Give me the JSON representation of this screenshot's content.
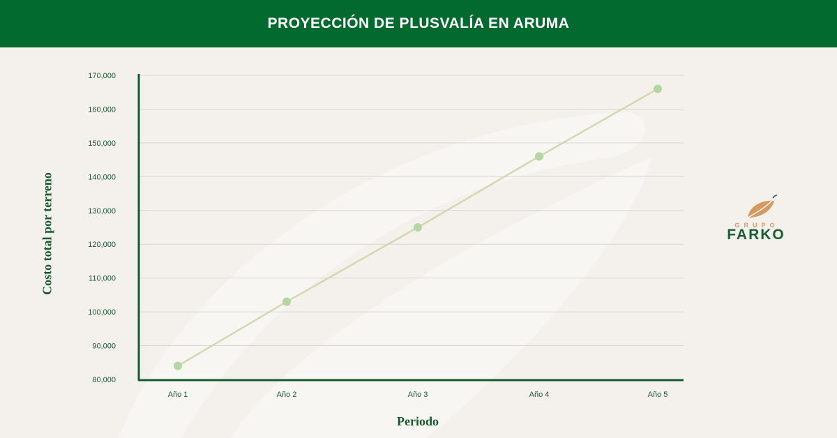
{
  "header": {
    "title": "PROYECCIÓN DE PLUSVALÍA EN ARUMA"
  },
  "brand": {
    "top": "GRUPO",
    "main": "FARKO"
  },
  "colors": {
    "banner": "#026a2e",
    "background": "#f4f0ec",
    "line": "#d3d8b1",
    "marker": "#b5d6a4",
    "axis": "#165a2f",
    "grid": "#dcd6d0",
    "tick_text": "#165a2f",
    "logo_leaf": "#d49a63"
  },
  "chart_data": {
    "type": "line",
    "title": "PROYECCIÓN DE PLUSVALÍA EN ARUMA",
    "xlabel": "Periodo",
    "ylabel": "Costo total por terreno",
    "categories": [
      "Año 1",
      "Año 2",
      "Año 3",
      "Año 4",
      "Año 5"
    ],
    "values": [
      84000,
      103000,
      125000,
      146000,
      166000
    ],
    "ylim": [
      80000,
      170000
    ],
    "yticks": [
      80000,
      90000,
      100000,
      110000,
      120000,
      130000,
      140000,
      150000,
      160000,
      170000
    ],
    "ytick_labels": [
      "80,000",
      "90,000",
      "100,000",
      "110,000",
      "120,000",
      "130,000",
      "140,000",
      "150,000",
      "160,000",
      "170,000"
    ],
    "grid": true,
    "legend": "none"
  }
}
